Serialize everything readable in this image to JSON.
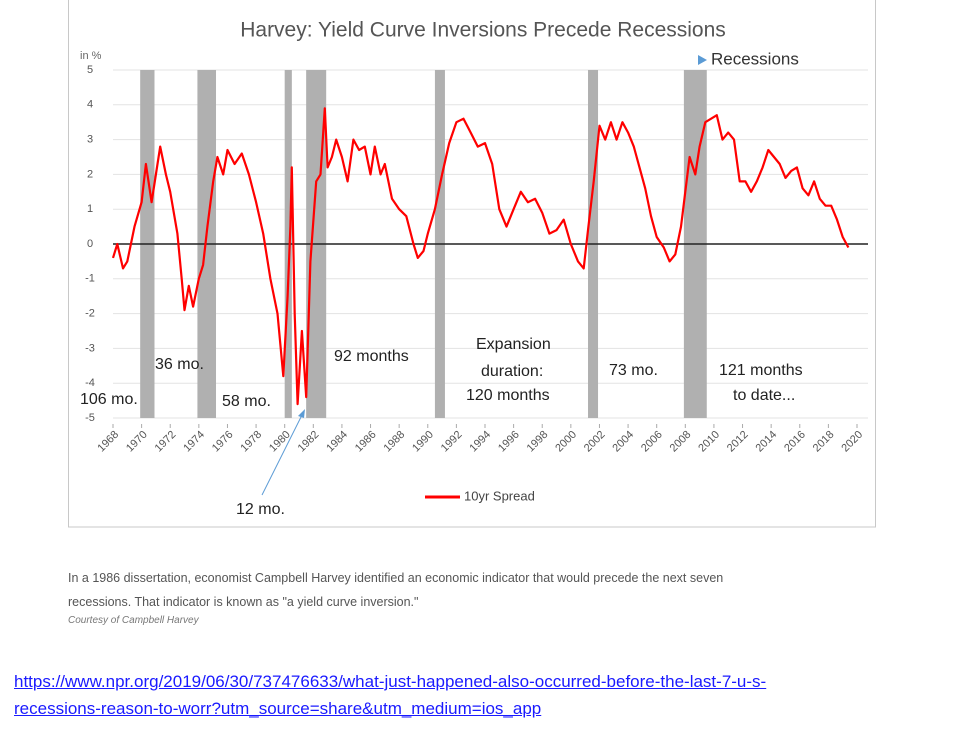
{
  "chart_data": {
    "type": "line",
    "title": "Harvey: Yield Curve Inversions Precede Recessions",
    "y_unit": "in %",
    "xlim": [
      1968,
      2020
    ],
    "xticks": [
      1968,
      1970,
      1972,
      1974,
      1976,
      1978,
      1980,
      1982,
      1984,
      1986,
      1988,
      1990,
      1992,
      1994,
      1996,
      1998,
      2000,
      2002,
      2004,
      2006,
      2008,
      2010,
      2012,
      2014,
      2016,
      2018,
      2020
    ],
    "ylim": [
      -5,
      5
    ],
    "yticks": [
      -5,
      -4,
      -3,
      -2,
      -1,
      0,
      1,
      2,
      3,
      4,
      5
    ],
    "grid": true,
    "recessions": {
      "name": "Recessions",
      "color": "#b0b0b0",
      "marker_color": "#5b9bd5",
      "spans": [
        [
          1969.9,
          1970.9
        ],
        [
          1973.9,
          1975.2
        ],
        [
          1980.0,
          1980.5
        ],
        [
          1981.5,
          1982.9
        ],
        [
          1990.5,
          1991.2
        ],
        [
          2001.2,
          2001.9
        ],
        [
          2007.9,
          2009.5
        ]
      ]
    },
    "series": [
      {
        "name": "10yr Spread",
        "color": "#ff0000",
        "x": [
          1968.0,
          1968.3,
          1968.7,
          1969.0,
          1969.5,
          1970.0,
          1970.3,
          1970.7,
          1971.0,
          1971.3,
          1971.7,
          1972.0,
          1972.5,
          1972.8,
          1973.0,
          1973.3,
          1973.6,
          1974.0,
          1974.3,
          1974.6,
          1975.0,
          1975.3,
          1975.7,
          1976.0,
          1976.5,
          1977.0,
          1977.5,
          1978.0,
          1978.5,
          1979.0,
          1979.5,
          1979.9,
          1980.2,
          1980.4,
          1980.5,
          1980.7,
          1980.9,
          1981.2,
          1981.5,
          1981.8,
          1982.2,
          1982.5,
          1982.8,
          1983.0,
          1983.3,
          1983.6,
          1984.0,
          1984.4,
          1984.8,
          1985.2,
          1985.6,
          1986.0,
          1986.3,
          1986.7,
          1987.0,
          1987.5,
          1988.0,
          1988.5,
          1989.0,
          1989.3,
          1989.7,
          1990.0,
          1990.5,
          1991.0,
          1991.5,
          1992.0,
          1992.5,
          1993.0,
          1993.5,
          1994.0,
          1994.5,
          1995.0,
          1995.5,
          1996.0,
          1996.5,
          1997.0,
          1997.5,
          1998.0,
          1998.5,
          1999.0,
          1999.5,
          2000.0,
          2000.5,
          2000.9,
          2001.2,
          2001.6,
          2002.0,
          2002.4,
          2002.8,
          2003.2,
          2003.6,
          2004.0,
          2004.4,
          2004.8,
          2005.2,
          2005.6,
          2006.0,
          2006.5,
          2006.9,
          2007.3,
          2007.7,
          2008.0,
          2008.3,
          2008.7,
          2009.0,
          2009.4,
          2009.8,
          2010.2,
          2010.6,
          2011.0,
          2011.4,
          2011.8,
          2012.2,
          2012.6,
          2013.0,
          2013.4,
          2013.8,
          2014.2,
          2014.6,
          2015.0,
          2015.4,
          2015.8,
          2016.2,
          2016.6,
          2017.0,
          2017.4,
          2017.8,
          2018.2,
          2018.6,
          2019.0,
          2019.4
        ],
        "values": [
          -0.4,
          0,
          -0.7,
          -0.5,
          0.5,
          1.2,
          2.3,
          1.2,
          2.0,
          2.8,
          2.0,
          1.5,
          0.3,
          -1.0,
          -1.9,
          -1.2,
          -1.8,
          -1.0,
          -0.6,
          0.5,
          1.8,
          2.5,
          2.0,
          2.7,
          2.3,
          2.6,
          2.0,
          1.2,
          0.3,
          -1.0,
          -2.0,
          -3.8,
          -1.5,
          0.5,
          2.2,
          -2.0,
          -4.6,
          -2.5,
          -4.4,
          -0.5,
          1.8,
          2.0,
          3.9,
          2.2,
          2.5,
          3.0,
          2.5,
          1.8,
          3.0,
          2.7,
          2.8,
          2.0,
          2.8,
          2.0,
          2.3,
          1.3,
          1.0,
          0.8,
          0.0,
          -0.4,
          -0.2,
          0.3,
          1.0,
          2.0,
          2.9,
          3.5,
          3.6,
          3.2,
          2.8,
          2.9,
          2.3,
          1.0,
          0.5,
          1.0,
          1.5,
          1.2,
          1.3,
          0.9,
          0.3,
          0.4,
          0.7,
          0.0,
          -0.5,
          -0.7,
          0.4,
          1.8,
          3.4,
          3.0,
          3.5,
          3.0,
          3.5,
          3.2,
          2.8,
          2.2,
          1.6,
          0.8,
          0.2,
          -0.1,
          -0.5,
          -0.3,
          0.5,
          1.5,
          2.5,
          2.0,
          2.8,
          3.5,
          3.6,
          3.7,
          3.0,
          3.2,
          3.0,
          1.8,
          1.8,
          1.5,
          1.8,
          2.2,
          2.7,
          2.5,
          2.3,
          1.9,
          2.1,
          2.2,
          1.6,
          1.4,
          1.8,
          1.3,
          1.1,
          1.1,
          0.7,
          0.2,
          -0.1
        ]
      }
    ],
    "annotations": [
      "106 mo.",
      "36 mo.",
      "58 mo.",
      "12 mo.",
      "92 months",
      "Expansion",
      "duration:",
      "120 months",
      "73 mo.",
      "121 months",
      "to date..."
    ]
  },
  "caption": [
    "In a 1986 dissertation, economist Campbell Harvey identified an economic indicator that would precede the next seven",
    "recessions. That indicator is known as \"a yield curve inversion.\""
  ],
  "credit": "Courtesy of Campbell Harvey",
  "link": [
    "https://www.npr.org/2019/06/30/737476633/what-just-happened-also-occurred-before-the-last-7-u-s-",
    "recessions-reason-to-worr?utm_source=share&utm_medium=ios_app"
  ]
}
